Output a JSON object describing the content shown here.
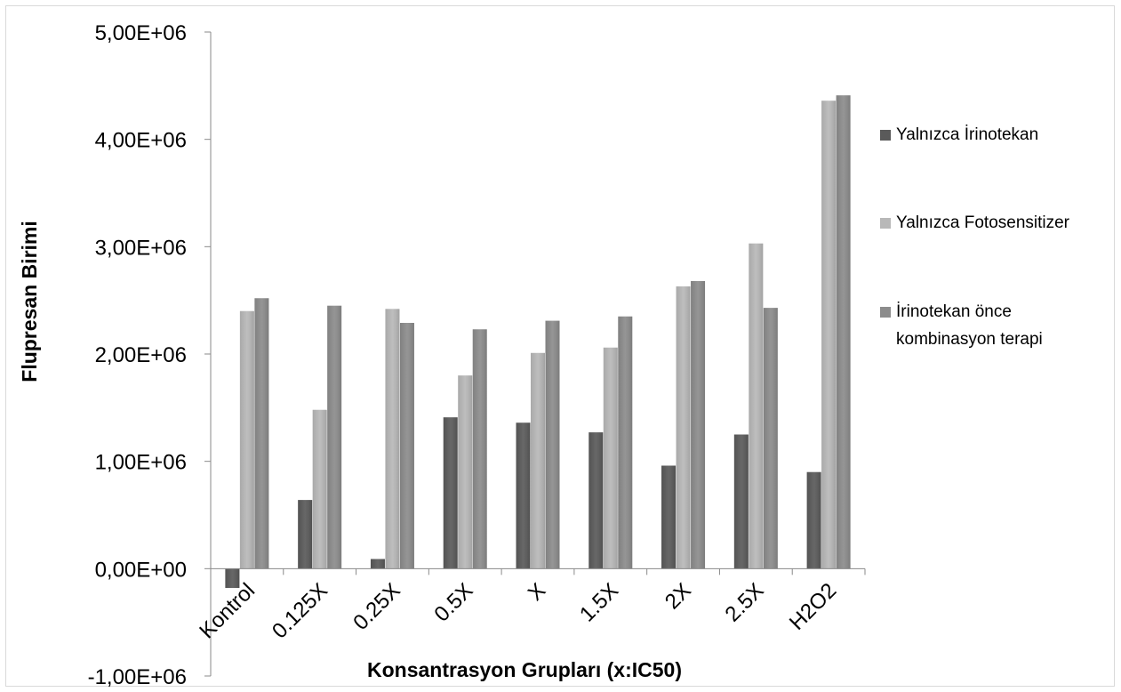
{
  "chart_data": {
    "type": "bar",
    "title": "",
    "xlabel": "Konsantrasyon Grupları (x:IC50)",
    "ylabel": "Flupresan Birimi",
    "categories": [
      "Kontrol",
      "0.125X",
      "0.25X",
      "0.5X",
      "X",
      "1.5X",
      "2X",
      "2.5X",
      "H2O2"
    ],
    "ylim": [
      -1000000,
      5000000
    ],
    "yticks": [
      -1000000,
      0,
      1000000,
      2000000,
      3000000,
      4000000,
      5000000
    ],
    "ytick_labels": [
      "-1,00E+06",
      "0,00E+00",
      "1,00E+06",
      "2,00E+06",
      "3,00E+06",
      "4,00E+06",
      "5,00E+06"
    ],
    "grid": false,
    "legend_position": "right",
    "series": [
      {
        "name": "Yalnızca İrinotekan",
        "color": "#5a5a5a",
        "values": [
          -180000,
          640000,
          90000,
          1410000,
          1360000,
          1270000,
          960000,
          1250000,
          900000
        ]
      },
      {
        "name": "Yalnızca Fotosensitizer",
        "color": "#b8b8b8",
        "values": [
          2400000,
          1480000,
          2420000,
          1800000,
          2010000,
          2060000,
          2630000,
          3030000,
          4360000
        ]
      },
      {
        "name": "İrinotekan önce kombinasyon terapi",
        "legend_lines": [
          "İrinotekan önce",
          "kombinasyon terapi"
        ],
        "color": "#8c8c8c",
        "values": [
          2520000,
          2450000,
          2290000,
          2230000,
          2310000,
          2350000,
          2680000,
          2430000,
          4410000
        ]
      }
    ]
  }
}
